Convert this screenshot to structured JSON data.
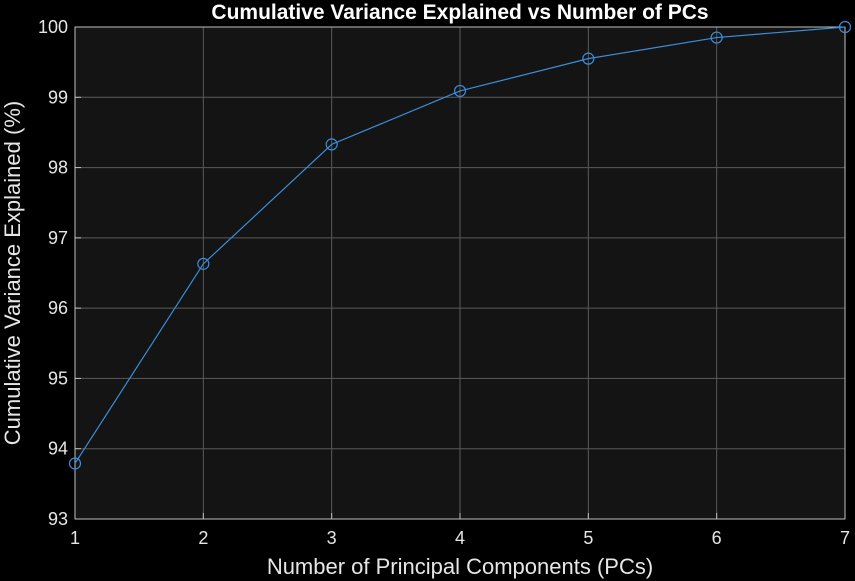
{
  "chart_data": {
    "type": "line",
    "title": "Cumulative Variance Explained vs Number of PCs",
    "xlabel": "Number of Principal Components (PCs)",
    "ylabel": "Cumulative Variance Explained (%)",
    "x": [
      1,
      2,
      3,
      4,
      5,
      6,
      7
    ],
    "series": [
      {
        "values": [
          93.79,
          96.63,
          98.33,
          99.09,
          99.55,
          99.85,
          100.0
        ],
        "color": "#3a8edb",
        "marker": "circle"
      }
    ],
    "xlim": [
      1,
      7
    ],
    "ylim": [
      93,
      100
    ],
    "xticks": [
      "1",
      "2",
      "3",
      "4",
      "5",
      "6",
      "7"
    ],
    "yticks": [
      "93",
      "94",
      "95",
      "96",
      "97",
      "98",
      "99",
      "100"
    ],
    "grid": true,
    "legend": "none",
    "colors": {
      "figure_background": "#000000",
      "axes_background": "#141414",
      "grid": "#5a5a5a",
      "axis_line": "#bfbfbf",
      "text": "#e6e6e6"
    }
  }
}
